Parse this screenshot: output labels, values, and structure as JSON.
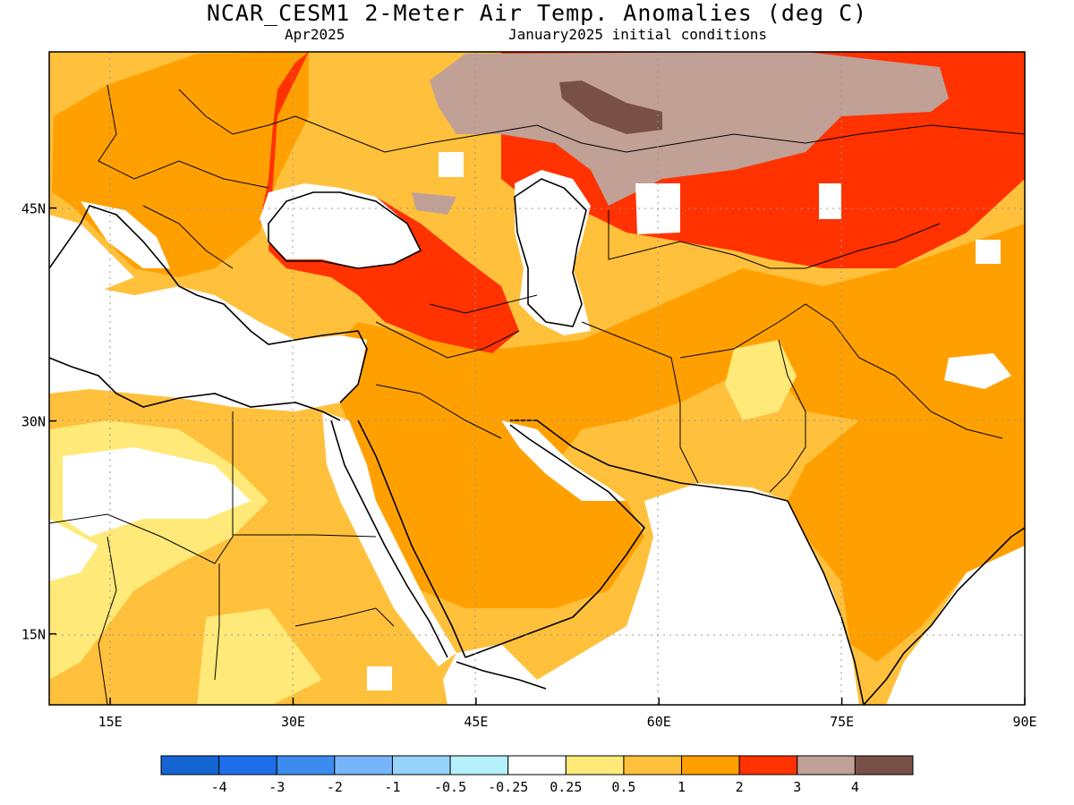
{
  "title": "NCAR_CESM1 2-Meter Air Temp. Anomalies (deg C)",
  "subtitle_left": "Apr2025",
  "subtitle_right": "January2025 initial conditions",
  "axes": {
    "lon_ticks": [
      {
        "value": 15,
        "label": "15E"
      },
      {
        "value": 30,
        "label": "30E"
      },
      {
        "value": 45,
        "label": "45E"
      },
      {
        "value": 60,
        "label": "60E"
      },
      {
        "value": 75,
        "label": "75E"
      },
      {
        "value": 90,
        "label": "90E"
      }
    ],
    "lat_ticks": [
      {
        "value": 45,
        "label": "45N"
      },
      {
        "value": 30,
        "label": "30N"
      },
      {
        "value": 15,
        "label": "15N"
      }
    ],
    "lon_range": [
      10,
      90
    ],
    "lat_range": [
      10,
      56
    ],
    "grid": true
  },
  "colorbar": {
    "colors": [
      "#1464d2",
      "#1e6eeb",
      "#3c8cf0",
      "#78b4fa",
      "#96d2fa",
      "#b4f0fa",
      "#ffffff",
      "#ffe978",
      "#ffc03c",
      "#ffa000",
      "#ff3200",
      "#c1a096",
      "#785046"
    ],
    "labels": [
      "-4",
      "-3",
      "-2",
      "-1",
      "-0.5",
      "-0.25",
      "0.25",
      "0.5",
      "1",
      "2",
      "3",
      "4"
    ]
  },
  "colors": {
    "white_0": "#ffffff",
    "yellow_025_05": "#ffe978",
    "lightorange_05_1": "#ffc03c",
    "orange_1_2": "#ffa000",
    "red_2_3": "#ff3200",
    "rose_3_4": "#c1a096",
    "brown_gt4": "#785046"
  }
}
